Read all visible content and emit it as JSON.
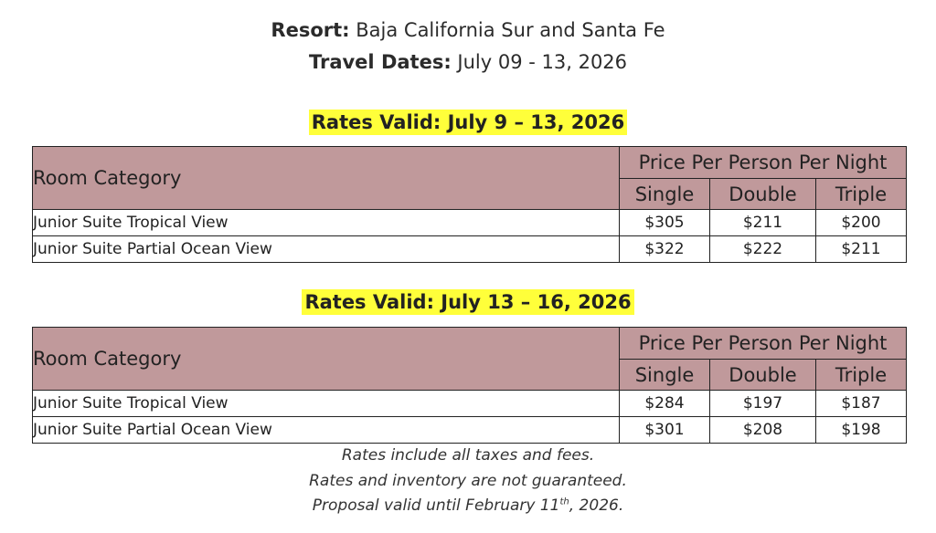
{
  "header": {
    "resort_label": "Resort:",
    "resort_value": "Baja California Sur and Santa Fe",
    "dates_label": "Travel Dates:",
    "dates_value": "July 09 - 13, 2026"
  },
  "columns": {
    "room_category": "Room Category",
    "price_group": "Price Per Person Per Night",
    "single": "Single",
    "double": "Double",
    "triple": "Triple"
  },
  "tables": [
    {
      "validity": "Rates Valid: July 9 – 13, 2026",
      "rows": [
        {
          "name": "Junior Suite Tropical View",
          "single": "$305",
          "double": "$211",
          "triple": "$200"
        },
        {
          "name": "Junior Suite Partial Ocean View",
          "single": "$322",
          "double": "$222",
          "triple": "$211"
        }
      ]
    },
    {
      "validity": "Rates Valid: July 13 – 16, 2026",
      "rows": [
        {
          "name": "Junior Suite Tropical View",
          "single": "$284",
          "double": "$197",
          "triple": "$187"
        },
        {
          "name": "Junior Suite Partial Ocean View",
          "single": "$301",
          "double": "$208",
          "triple": "$198"
        }
      ]
    }
  ],
  "notes": {
    "line1": "Rates include all taxes and fees.",
    "line2": "Rates and inventory are not guaranteed.",
    "line3_pre": "Proposal valid until February 11",
    "line3_sup": "th",
    "line3_post": ", 2026."
  },
  "colors": {
    "header_fill": "#c0999b",
    "highlight": "#ffff3a"
  }
}
